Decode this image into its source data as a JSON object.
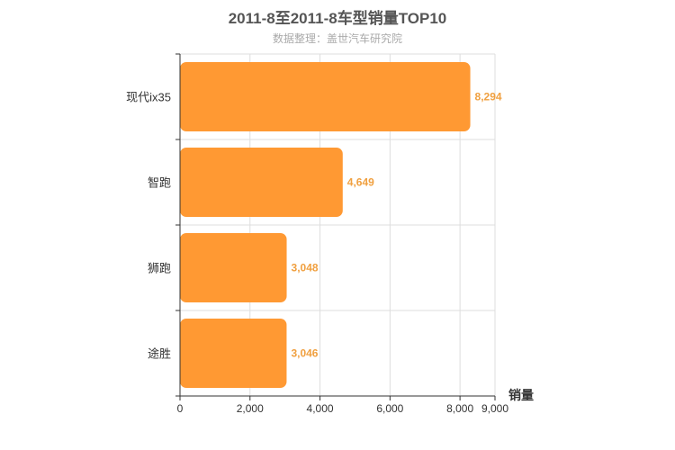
{
  "chart_data": {
    "type": "bar",
    "orientation": "horizontal",
    "title": "2011-8至2011-8车型销量TOP10",
    "subtitle": "数据整理：盖世汽车研究院",
    "categories": [
      "现代ix35",
      "智跑",
      "狮跑",
      "途胜"
    ],
    "values": [
      8294,
      4649,
      3048,
      3046
    ],
    "data_labels": [
      "8,294",
      "4,649",
      "3,048",
      "3,046"
    ],
    "xlabel": "销量",
    "ylabel": "",
    "xlim": [
      0,
      9000
    ],
    "x_ticks": [
      0,
      2000,
      4000,
      6000,
      8000,
      9000
    ],
    "x_tick_labels": [
      "0",
      "2,000",
      "4,000",
      "6,000",
      "8,000",
      "9,000"
    ],
    "grid": true,
    "legend": "none",
    "colors": {
      "bar": "#ff9933",
      "data_label": "#f0a040",
      "grid": "#dddddd",
      "axis": "#333333"
    }
  }
}
